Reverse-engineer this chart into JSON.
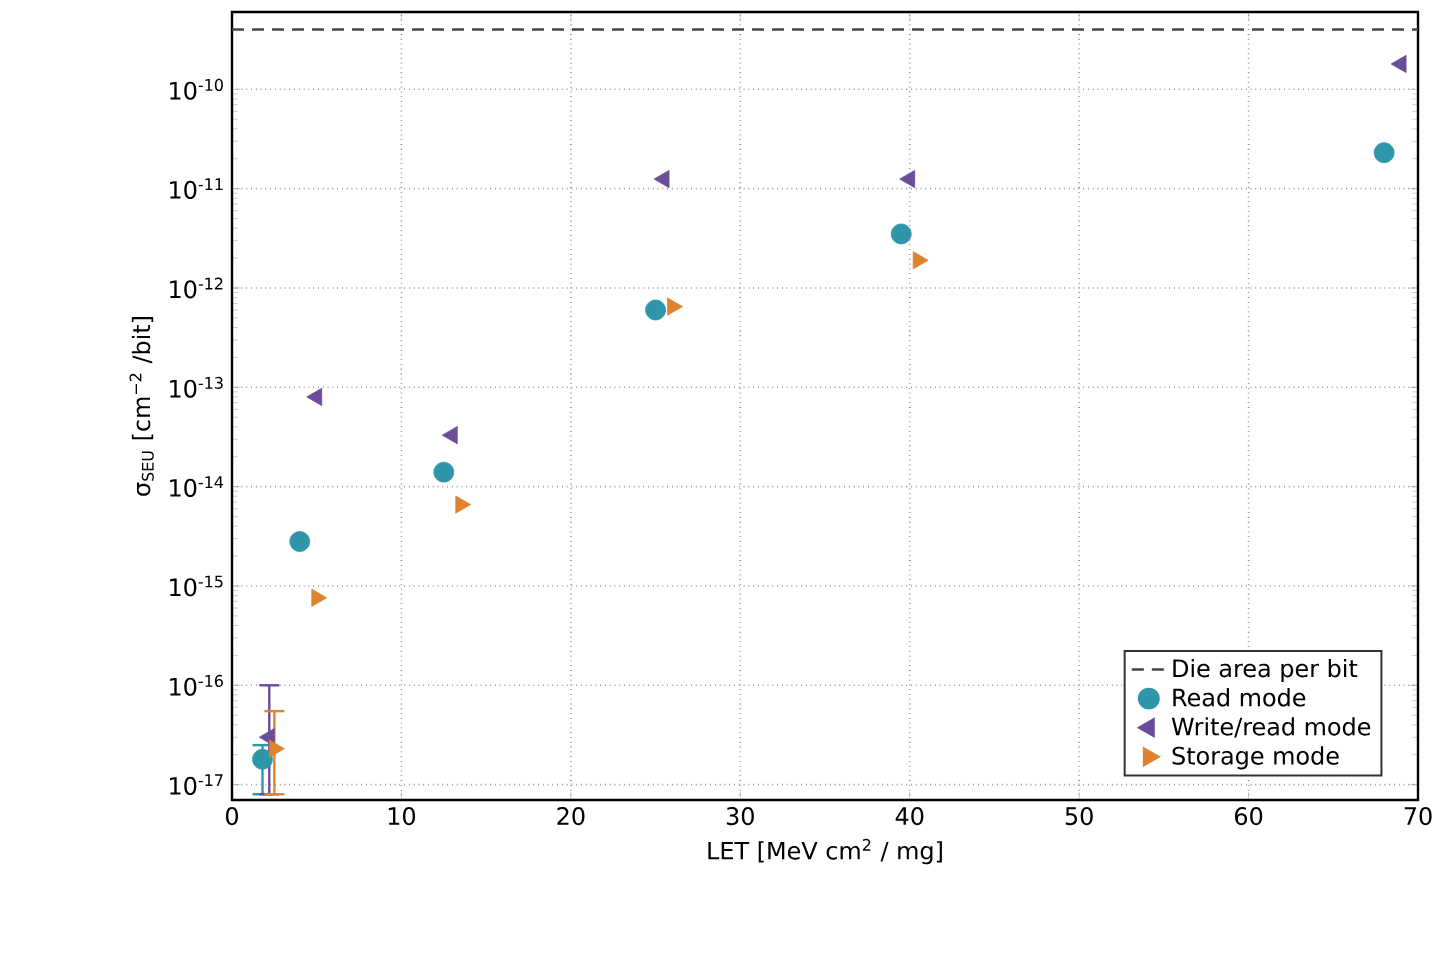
{
  "chart_data": {
    "type": "scatter",
    "xlabel": "LET [MeV cm$^{2}$ / mg]",
    "ylabel": "σ$_{SEU}$ [cm$^{−2}$ /bit]",
    "log": "y",
    "grid": true,
    "legend": "bottom right",
    "xlim": [
      0,
      70
    ],
    "xticks": [
      0,
      10,
      20,
      30,
      40,
      50,
      60,
      70
    ],
    "ylim": [
      7e-18,
      6e-10
    ],
    "yticks": [
      {
        "value": 1e-17,
        "label": "10$^{-17}$"
      },
      {
        "value": 1e-16,
        "label": "10$^{-16}$"
      },
      {
        "value": 1e-15,
        "label": "10$^{-15}$"
      },
      {
        "value": 1e-14,
        "label": "10$^{-14}$"
      },
      {
        "value": 1e-13,
        "label": "10$^{-13}$"
      },
      {
        "value": 1e-12,
        "label": "10$^{-12}$"
      },
      {
        "value": 1e-11,
        "label": "10$^{-11}$"
      },
      {
        "value": 1e-10,
        "label": "10$^{-10}$"
      }
    ],
    "ref_lines": [
      {
        "axis": "y",
        "value": 4e-10,
        "label": "Die area per bit",
        "color": "#444444",
        "line_style": "dashed"
      }
    ],
    "series": [
      {
        "name": "Read mode",
        "color": "#2e96a8",
        "marker": "circle",
        "x": [
          1.8,
          4,
          12.5,
          25,
          39.5,
          68
        ],
        "values": [
          1.8e-17,
          2.8e-15,
          1.4e-14,
          6e-13,
          3.5e-12,
          2.3e-11
        ],
        "errors": [
          [
            8e-18,
            2.5e-17
          ],
          null,
          null,
          null,
          null,
          null
        ]
      },
      {
        "name": "Write/read mode",
        "color": "#6b4c9a",
        "marker": "triangle-left",
        "x": [
          2.2,
          5,
          13,
          25.5,
          40,
          69
        ],
        "values": [
          3e-17,
          8e-14,
          3.3e-14,
          1.25e-11,
          1.25e-11,
          1.8e-10
        ],
        "errors": [
          [
            8e-18,
            1e-16
          ],
          null,
          null,
          null,
          null,
          null
        ]
      },
      {
        "name": "Storage mode",
        "color": "#e0832e",
        "marker": "triangle-right",
        "x": [
          2.5,
          5,
          13.5,
          26,
          40.5
        ],
        "values": [
          2.3e-17,
          7.6e-16,
          6.6e-15,
          6.5e-13,
          1.9e-12
        ],
        "errors": [
          [
            8e-18,
            5.5e-17
          ],
          null,
          null,
          null,
          null
        ]
      }
    ]
  }
}
